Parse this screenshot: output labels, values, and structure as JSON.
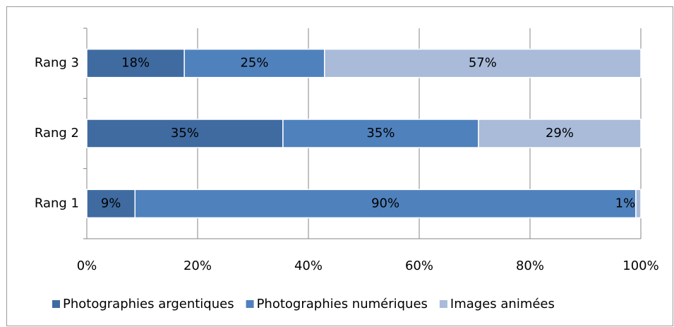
{
  "chart_data": {
    "type": "stacked_bar_horizontal",
    "categories": [
      "Rang 1",
      "Rang 2",
      "Rang 3"
    ],
    "series": [
      {
        "name": "Photographies argentiques",
        "color": "#3f6ba1",
        "values": [
          8.7,
          35.4,
          17.6
        ],
        "value_labels": [
          "9%",
          "35%",
          "18%"
        ]
      },
      {
        "name": "Photographies numériques",
        "color": "#4f81bd",
        "values": [
          90.4,
          35.3,
          25.3
        ],
        "value_labels": [
          "90%",
          "35%",
          "25%"
        ]
      },
      {
        "name": "Images animées",
        "color": "#a9bbd9",
        "values": [
          0.9,
          29.3,
          57.1
        ],
        "value_labels": [
          "1%",
          "29%",
          "57%"
        ]
      }
    ],
    "xlim": [
      0,
      100
    ],
    "xticks": [
      {
        "value": 0,
        "label": "0%"
      },
      {
        "value": 20,
        "label": "20%"
      },
      {
        "value": 40,
        "label": "40%"
      },
      {
        "value": 60,
        "label": "60%"
      },
      {
        "value": 80,
        "label": "80%"
      },
      {
        "value": 100,
        "label": "100%"
      }
    ],
    "grid": true,
    "legend": "bottom"
  }
}
